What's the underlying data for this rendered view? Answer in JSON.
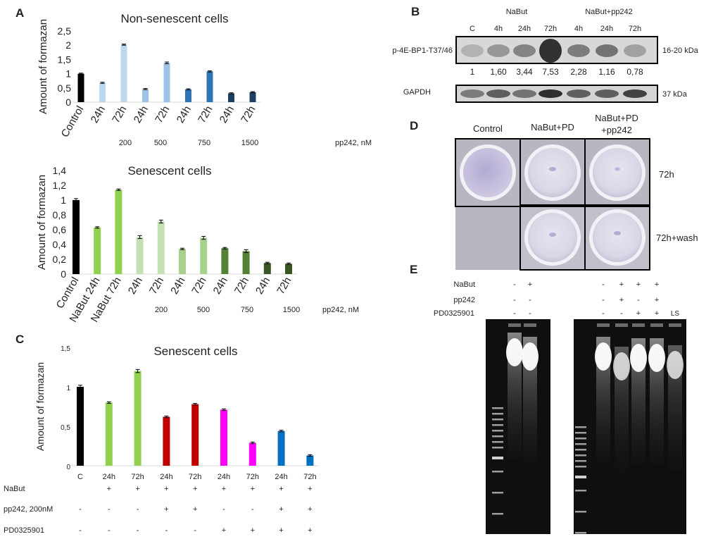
{
  "panel_labels": {
    "a": "A",
    "b": "B",
    "c": "C",
    "d": "D",
    "e": "E"
  },
  "chart_data": [
    {
      "type": "bar",
      "title": "Non-senescent cells",
      "ylabel": "Amount of formazan",
      "ylim": [
        0,
        2.5
      ],
      "yticks": [
        "0",
        "0,5",
        "1",
        "1,5",
        "2",
        "2,5"
      ],
      "categories": [
        "Control",
        "24h",
        "72h",
        "24h",
        "72h",
        "24h",
        "72h",
        "24h",
        "72h"
      ],
      "values": [
        1.0,
        0.68,
        2.02,
        0.46,
        1.38,
        0.45,
        1.08,
        0.31,
        0.35
      ],
      "errors": [
        0.02,
        0.02,
        0.02,
        0.02,
        0.03,
        0.02,
        0.02,
        0.02,
        0.02
      ],
      "colors": [
        "#000000",
        "#bdd7ee",
        "#bdd7ee",
        "#9dc3e6",
        "#9dc3e6",
        "#2e75b6",
        "#2e75b6",
        "#1f3e64",
        "#1f3e64"
      ],
      "group_labels": [
        "200",
        "500",
        "750",
        "1500"
      ],
      "unit_label": "pp242, nM"
    },
    {
      "type": "bar",
      "title": "Senescent cells",
      "ylabel": "Amount of formazan",
      "ylim": [
        0,
        1.4
      ],
      "yticks": [
        "0",
        "0,2",
        "0,4",
        "0,6",
        "0,8",
        "1",
        "1,2",
        "1,4"
      ],
      "categories": [
        "Control",
        "NaBut 24h",
        "NaBut 72h",
        "24h",
        "72h",
        "24h",
        "72h",
        "24h",
        "72h",
        "24h",
        "72h"
      ],
      "values": [
        1.0,
        0.63,
        1.14,
        0.5,
        0.71,
        0.34,
        0.49,
        0.35,
        0.31,
        0.15,
        0.14
      ],
      "errors": [
        0.02,
        0.01,
        0.01,
        0.02,
        0.02,
        0.01,
        0.02,
        0.01,
        0.02,
        0.01,
        0.01
      ],
      "colors": [
        "#000000",
        "#92d050",
        "#92d050",
        "#c5e0b4",
        "#c5e0b4",
        "#a9d18e",
        "#a9d18e",
        "#548235",
        "#548235",
        "#385723",
        "#385723"
      ],
      "group_labels": [
        "200",
        "500",
        "750",
        "1500"
      ],
      "unit_label": "pp242, nM"
    },
    {
      "type": "bar",
      "title": "Senescent cells",
      "ylabel": "Amount of formazan",
      "ylim": [
        0,
        1.5
      ],
      "yticks": [
        "0",
        "0,5",
        "1",
        "1,5"
      ],
      "categories": [
        "C",
        "24h",
        "72h",
        "24h",
        "72h",
        "24h",
        "72h",
        "24h",
        "72h"
      ],
      "values": [
        1.0,
        0.8,
        1.2,
        0.62,
        0.78,
        0.71,
        0.29,
        0.44,
        0.13
      ],
      "errors": [
        0.02,
        0.01,
        0.02,
        0.01,
        0.01,
        0.01,
        0.01,
        0.01,
        0.01
      ],
      "colors": [
        "#000000",
        "#92d050",
        "#92d050",
        "#c00000",
        "#c00000",
        "#ff00ff",
        "#ff00ff",
        "#0070c0",
        "#0070c0"
      ],
      "treatments": [
        {
          "name": "NaBut",
          "signs": [
            "",
            "+",
            "+",
            "+",
            "+",
            "+",
            "+",
            "+",
            "+"
          ]
        },
        {
          "name": "pp242, 200nM",
          "signs": [
            "-",
            "-",
            "-",
            "+",
            "+",
            "-",
            "-",
            "+",
            "+"
          ]
        },
        {
          "name": "PD0325901",
          "signs": [
            "-",
            "-",
            "-",
            "-",
            "-",
            "+",
            "+",
            "+",
            "+"
          ]
        }
      ]
    }
  ],
  "blot": {
    "header_groups": [
      "NaBut",
      "NaBut+pp242"
    ],
    "lanes": [
      "C",
      "4h",
      "24h",
      "72h",
      "4h",
      "24h",
      "72h"
    ],
    "row1_label": "p-4E-BP1-T37/46",
    "row1_size": "16-20 kDa",
    "quant": [
      "1",
      "1,60",
      "3,44",
      "7,53",
      "2,28",
      "1,16",
      "0,78"
    ],
    "row2_label": "GAPDH",
    "row2_size": "37 kDa"
  },
  "plates": {
    "columns": [
      "Control",
      "NaBut+PD",
      "NaBut+PD",
      "+pp242"
    ],
    "rows": [
      "72h",
      "72h+wash"
    ]
  },
  "gel": {
    "rows": [
      {
        "name": "NaBut",
        "left": [
          "-",
          "+"
        ],
        "right": [
          "-",
          "+",
          "+",
          "+"
        ]
      },
      {
        "name": "pp242",
        "left": [
          "-",
          "-"
        ],
        "right": [
          "-",
          "+",
          "-",
          "+"
        ]
      },
      {
        "name": "PD0325901",
        "left": [
          "-",
          "-"
        ],
        "right": [
          "-",
          "-",
          "+",
          "+",
          "LS"
        ]
      }
    ]
  }
}
